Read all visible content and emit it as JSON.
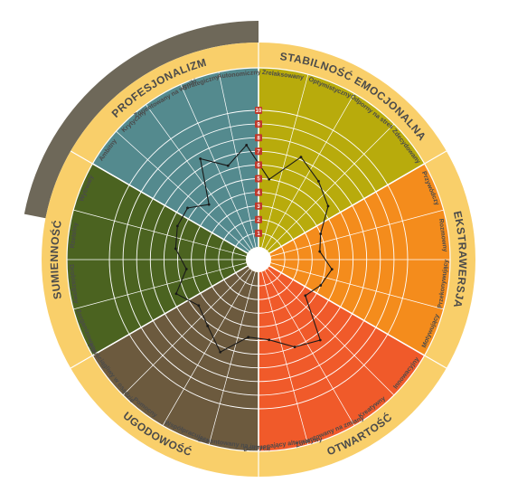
{
  "chart_data": {
    "type": "radar",
    "title": "",
    "scale": {
      "min": 0,
      "max": 10,
      "rings": 10
    },
    "tick_labels": [
      "1",
      "2",
      "3",
      "4",
      "5",
      "6",
      "7",
      "8",
      "9",
      "10"
    ],
    "colors": {
      "outer_band": "#f9cf6a",
      "highlight_arc": "#6e6859",
      "grid": "#ffffff",
      "profile_line": "#1a1a1a",
      "tick_marker": "#c0392b"
    },
    "sectors": [
      {
        "name": "STABILNOŚĆ EMOCJONALNA",
        "color": "#b8ab0c",
        "traits": [
          "Zrelaksowany",
          "Optymistyczny",
          "Odporny na stres",
          "Zdecydowany"
        ],
        "values": [
          5.0,
          7.2,
          6.3,
          5.5
        ]
      },
      {
        "name": "EKSTRAWERSJA",
        "color": "#f48c1c",
        "traits": [
          "Przywódczy",
          "Rozmowny",
          "Przekonywujący",
          "Motywujący"
        ],
        "values": [
          4.0,
          3.6,
          4.5,
          4.0
        ]
      },
      {
        "name": "OTWARTOŚĆ",
        "color": "#f05a2a",
        "traits": [
          "Innowacyjny",
          "Kreatywny",
          "Zorientowany na zmiany",
          "Dostrzegający alternatywy"
        ],
        "values": [
          3.4,
          6.5,
          6.0,
          5.0
        ]
      },
      {
        "name": "UGODOWOŚĆ",
        "color": "#6c5a3e",
        "traits": [
          "Zorientowany na innych",
          "Współpracujący",
          "Pomocny",
          "Powściągliwy w osądzie"
        ],
        "values": [
          4.8,
          6.4,
          5.2,
          4.6
        ]
      },
      {
        "name": "SUMIENNOŚĆ",
        "color": "#4b6320",
        "traits": [
          "Zorganizowany",
          "Drobiazgowy",
          "Rzetelny",
          "Wytrwały"
        ],
        "values": [
          5.6,
          4.4,
          5.2,
          5.5
        ]
      },
      {
        "name": "PROFESJONALIZM",
        "color": "#548a8e",
        "traits": [
          "Ambitny",
          "Krytyczny",
          "Zorientowany na wyniki",
          "Strategiczny",
          "Autonomiczny"
        ],
        "values": [
          5.5,
          4.5,
          7.6,
          6.3,
          7.5
        ]
      }
    ]
  }
}
